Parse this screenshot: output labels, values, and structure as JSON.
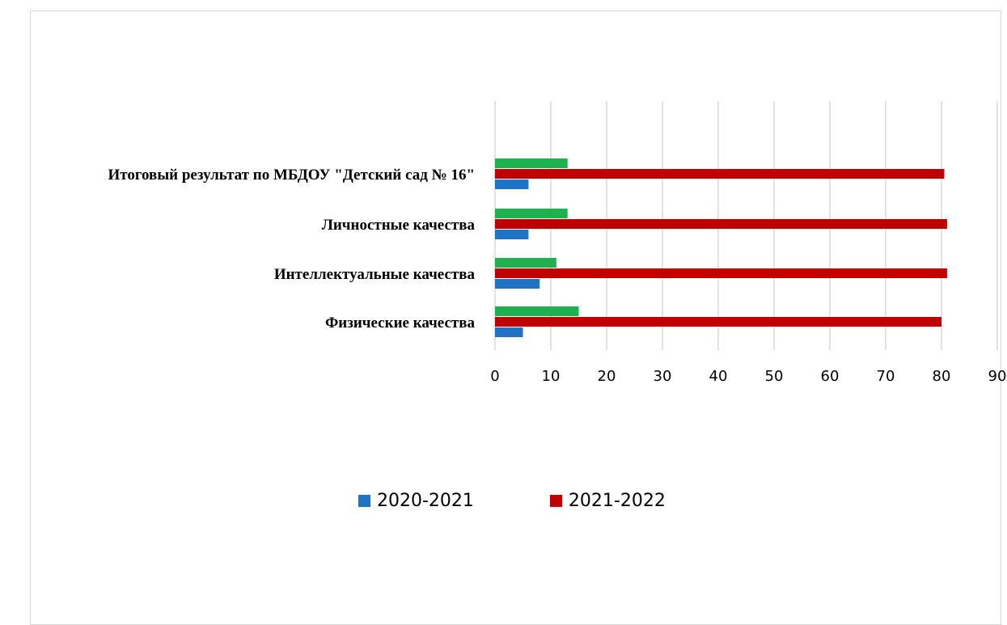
{
  "chart_data": {
    "type": "bar",
    "orientation": "horizontal",
    "title": "",
    "xlabel": "",
    "ylabel": "",
    "xlim": [
      0,
      90
    ],
    "xticks": [
      0,
      10,
      20,
      30,
      40,
      50,
      60,
      70,
      80,
      90
    ],
    "grid": true,
    "legend_position": "bottom",
    "categories": [
      "Итоговый результат по МБДОУ \"Детский сад № 16\"",
      "Личностные качества",
      "Интеллектуальные качества",
      "Физические качества"
    ],
    "series": [
      {
        "name": "2020-2021",
        "color": "#1f73c4",
        "values": [
          6,
          6,
          8,
          5
        ]
      },
      {
        "name": "2021-2022",
        "color": "#c00000",
        "values": [
          80.5,
          81,
          81,
          80
        ]
      },
      {
        "color": "#1fb050",
        "values": [
          13,
          13,
          11,
          15
        ]
      }
    ]
  }
}
